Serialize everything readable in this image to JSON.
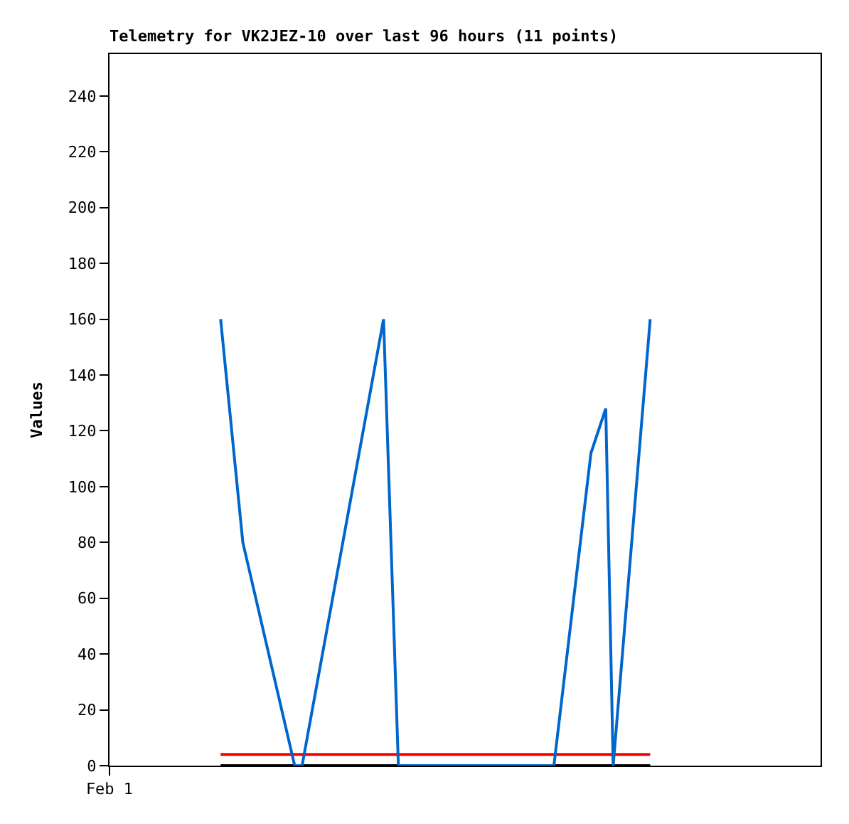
{
  "chart_data": {
    "type": "line",
    "title": "Telemetry for VK2JEZ-10 over last 96 hours (11 points)",
    "ylabel": "Values",
    "categories": [
      "Feb 1",
      null,
      null,
      null,
      null,
      null,
      null,
      null,
      null,
      null,
      null,
      null,
      null,
      null,
      null,
      null,
      null,
      null,
      null,
      null,
      null,
      null,
      null,
      null,
      null,
      null,
      null,
      null,
      null,
      null,
      null,
      null,
      null,
      null,
      null,
      null,
      null,
      null,
      null,
      null,
      null,
      null,
      null,
      null,
      null,
      null,
      null,
      null,
      null,
      null,
      null,
      null,
      null,
      null,
      null,
      null,
      null,
      null,
      null,
      null,
      null,
      null,
      null,
      null,
      null,
      null,
      null,
      null,
      null,
      null,
      null,
      null,
      null,
      null,
      null,
      null,
      null,
      null,
      null,
      null,
      null,
      null,
      null,
      null,
      null,
      null,
      null,
      null,
      null,
      null,
      null,
      null,
      null,
      null,
      null,
      null,
      null
    ],
    "series": [
      {
        "color": "#000000",
        "values": [
          null,
          null,
          null,
          null,
          null,
          null,
          null,
          null,
          null,
          null,
          null,
          null,
          null,
          null,
          null,
          0,
          null,
          null,
          0,
          null,
          null,
          null,
          null,
          null,
          null,
          0,
          0,
          null,
          null,
          null,
          null,
          null,
          null,
          null,
          null,
          null,
          null,
          0,
          null,
          0,
          null,
          null,
          null,
          null,
          null,
          null,
          null,
          null,
          null,
          null,
          null,
          null,
          null,
          null,
          null,
          null,
          null,
          null,
          null,
          null,
          0,
          null,
          null,
          null,
          null,
          0,
          null,
          0,
          0,
          null,
          null,
          null,
          null,
          0,
          null,
          null,
          null,
          null,
          null,
          null,
          null,
          null,
          null,
          null,
          null,
          null,
          null,
          null,
          null,
          null,
          null,
          null,
          null,
          null,
          null,
          null,
          null
        ]
      },
      {
        "color": "#ff0000",
        "values": [
          null,
          null,
          null,
          null,
          null,
          null,
          null,
          null,
          null,
          null,
          null,
          null,
          null,
          null,
          null,
          4,
          null,
          null,
          4,
          null,
          null,
          null,
          null,
          null,
          null,
          4,
          4,
          null,
          null,
          null,
          null,
          null,
          null,
          null,
          null,
          null,
          null,
          4,
          null,
          4,
          null,
          null,
          null,
          null,
          null,
          null,
          null,
          null,
          null,
          null,
          null,
          null,
          null,
          null,
          null,
          null,
          null,
          null,
          null,
          null,
          4,
          null,
          null,
          null,
          null,
          4,
          null,
          4,
          4,
          null,
          null,
          null,
          null,
          4,
          null,
          null,
          null,
          null,
          null,
          null,
          null,
          null,
          null,
          null,
          null,
          null,
          null,
          null,
          null,
          null,
          null,
          null,
          null,
          null,
          null,
          null,
          null
        ]
      },
      {
        "color": "#0066cc",
        "values": [
          null,
          null,
          null,
          null,
          null,
          null,
          null,
          null,
          null,
          null,
          null,
          null,
          null,
          null,
          null,
          160,
          null,
          null,
          80,
          null,
          null,
          null,
          null,
          null,
          null,
          0,
          0,
          null,
          null,
          null,
          null,
          null,
          null,
          null,
          null,
          null,
          null,
          160,
          null,
          0,
          null,
          null,
          null,
          null,
          null,
          null,
          null,
          null,
          null,
          null,
          null,
          null,
          null,
          null,
          null,
          null,
          null,
          null,
          null,
          null,
          0,
          null,
          null,
          null,
          null,
          112,
          null,
          128,
          0,
          null,
          null,
          null,
          null,
          160,
          null,
          null,
          null,
          null,
          null,
          null,
          null,
          null,
          null,
          null,
          null,
          null,
          null,
          null,
          null,
          null,
          null,
          null,
          null,
          null,
          null,
          null,
          null
        ]
      }
    ],
    "ylim": [
      0,
      255
    ],
    "yticks": [
      0,
      20,
      40,
      60,
      80,
      100,
      120,
      140,
      160,
      180,
      200,
      220,
      240
    ],
    "marker": "none",
    "line_style": "solid"
  }
}
